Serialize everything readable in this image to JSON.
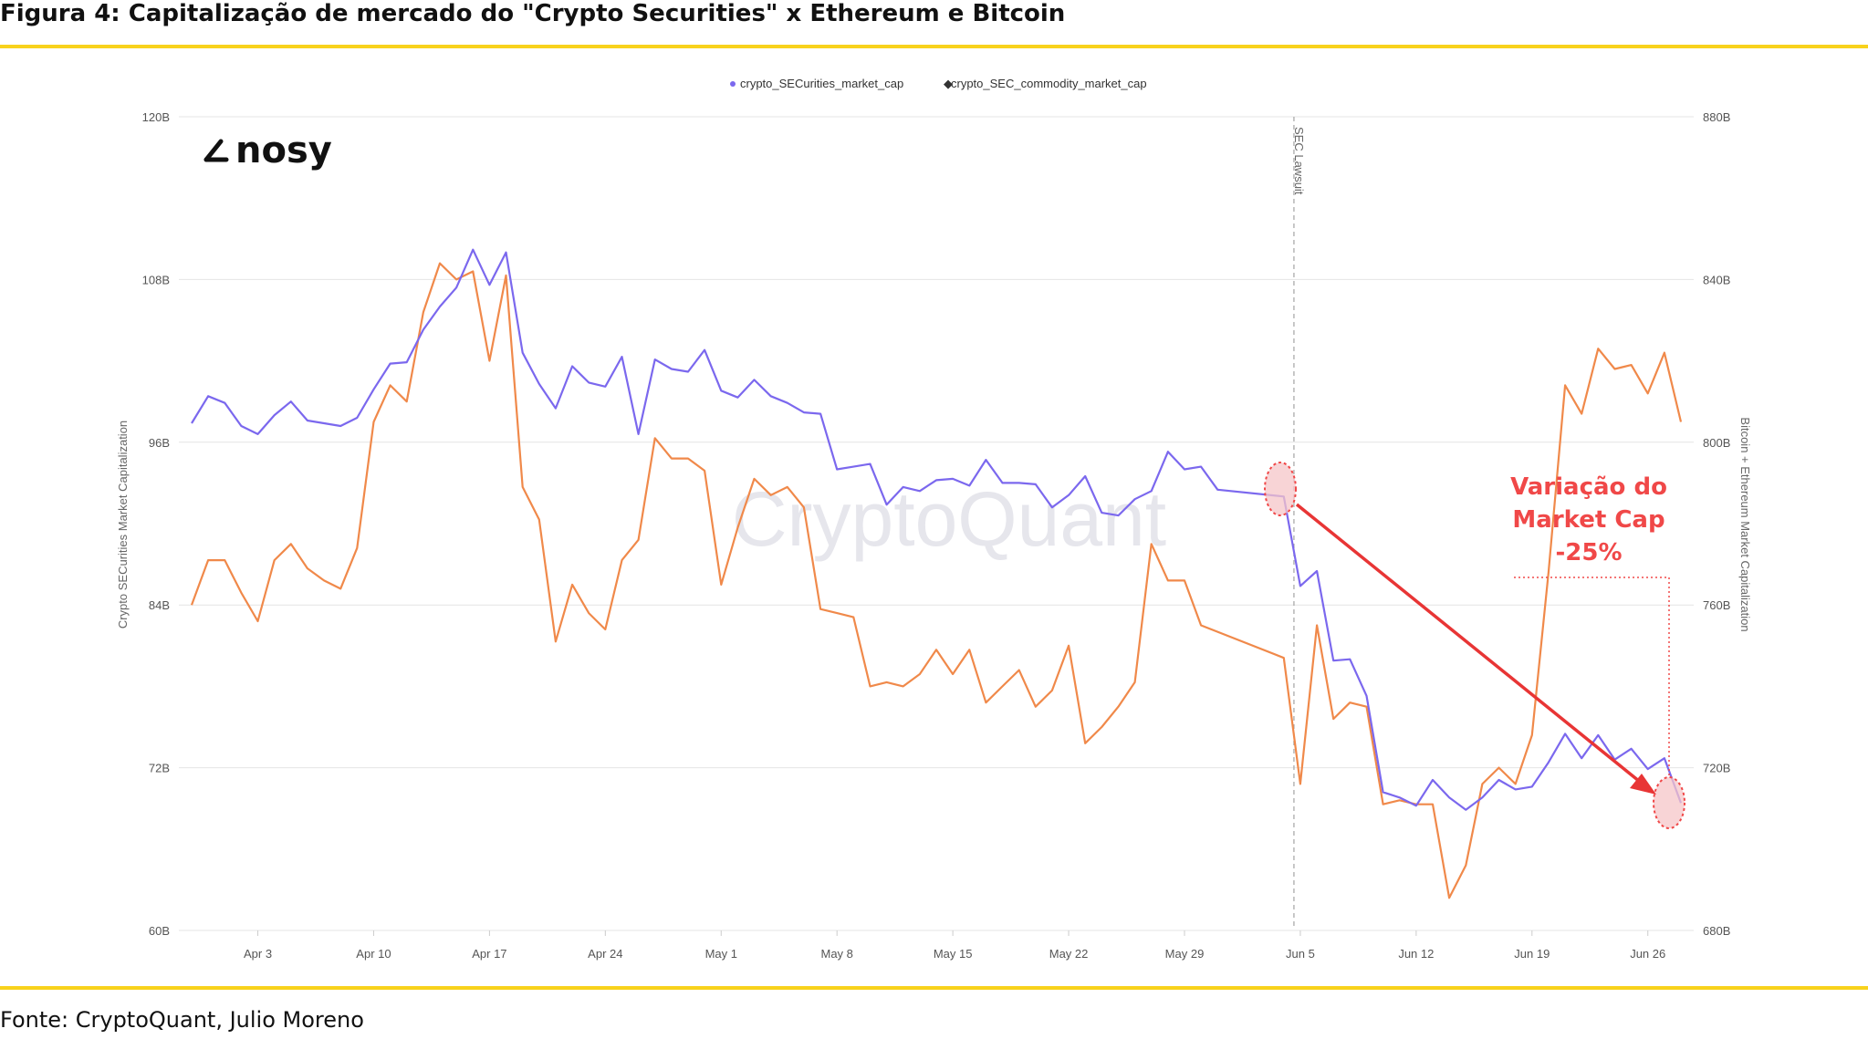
{
  "figure": {
    "title": "Figura 4: Capitalização de mercado do \"Crypto Securities\" x Ethereum e Bitcoin",
    "source": "Fonte: CryptoQuant, Julio Moreno",
    "logo_text": "nosy",
    "watermark_text": "CryptoQuant",
    "accent_color": "#f8d21c"
  },
  "annotation": {
    "line1": "Variação do",
    "line2": "Market Cap",
    "line3": "-25%",
    "color": "#f04848"
  },
  "chart_data": {
    "type": "line",
    "x_tick_labels": [
      "Apr 3",
      "Apr 10",
      "Apr 17",
      "Apr 24",
      "May 1",
      "May 8",
      "May 15",
      "May 22",
      "May 29",
      "Jun 5",
      "Jun 12",
      "Jun 19",
      "Jun 26"
    ],
    "x_start": "Mar 30",
    "x_end": "Jun 28",
    "left_axis": {
      "label": "Crypto SECurities Market Capitalization",
      "ylim": [
        60,
        120
      ],
      "ticks": [
        "60B",
        "72B",
        "84B",
        "96B",
        "108B",
        "120B"
      ]
    },
    "right_axis": {
      "label": "Bitcoin + Ethereum Market Capitalization",
      "ylim": [
        680,
        880
      ],
      "ticks": [
        "680B",
        "720B",
        "760B",
        "800B",
        "840B",
        "880B"
      ]
    },
    "event_line": {
      "label": "SEC Lawsuit",
      "date": "Jun 5"
    },
    "grid": true,
    "legend_position": "top-center",
    "series": [
      {
        "name": "crypto_SECurities_market_cap",
        "axis": "left",
        "color": "#7b68ee",
        "values": [
          [
            "Mar 30",
            97.4
          ],
          [
            "Mar 31",
            99.4
          ],
          [
            "Apr 1",
            98.9
          ],
          [
            "Apr 2",
            97.2
          ],
          [
            "Apr 3",
            96.6
          ],
          [
            "Apr 4",
            98.0
          ],
          [
            "Apr 5",
            99.0
          ],
          [
            "Apr 6",
            97.6
          ],
          [
            "Apr 7",
            97.4
          ],
          [
            "Apr 8",
            97.2
          ],
          [
            "Apr 9",
            97.8
          ],
          [
            "Apr 10",
            99.9
          ],
          [
            "Apr 11",
            101.8
          ],
          [
            "Apr 12",
            101.9
          ],
          [
            "Apr 13",
            104.3
          ],
          [
            "Apr 14",
            106.0
          ],
          [
            "Apr 15",
            107.4
          ],
          [
            "Apr 16",
            110.2
          ],
          [
            "Apr 17",
            107.6
          ],
          [
            "Apr 18",
            110.0
          ],
          [
            "Apr 19",
            102.6
          ],
          [
            "Apr 20",
            100.3
          ],
          [
            "Apr 21",
            98.5
          ],
          [
            "Apr 22",
            101.6
          ],
          [
            "Apr 23",
            100.4
          ],
          [
            "Apr 24",
            100.1
          ],
          [
            "Apr 25",
            102.3
          ],
          [
            "Apr 26",
            96.6
          ],
          [
            "Apr 27",
            102.1
          ],
          [
            "Apr 28",
            101.4
          ],
          [
            "Apr 29",
            101.2
          ],
          [
            "Apr 30",
            102.8
          ],
          [
            "May 1",
            99.8
          ],
          [
            "May 2",
            99.3
          ],
          [
            "May 3",
            100.6
          ],
          [
            "May 4",
            99.4
          ],
          [
            "May 5",
            98.9
          ],
          [
            "May 6",
            98.2
          ],
          [
            "May 7",
            98.1
          ],
          [
            "May 8",
            94.0
          ],
          [
            "May 9",
            94.2
          ],
          [
            "May 10",
            94.4
          ],
          [
            "May 11",
            91.4
          ],
          [
            "May 12",
            92.7
          ],
          [
            "May 13",
            92.4
          ],
          [
            "May 14",
            93.2
          ],
          [
            "May 15",
            93.3
          ],
          [
            "May 16",
            92.8
          ],
          [
            "May 17",
            94.7
          ],
          [
            "May 18",
            93.0
          ],
          [
            "May 19",
            93.0
          ],
          [
            "May 20",
            92.9
          ],
          [
            "May 21",
            91.2
          ],
          [
            "May 22",
            92.1
          ],
          [
            "May 23",
            93.5
          ],
          [
            "May 24",
            90.8
          ],
          [
            "May 25",
            90.6
          ],
          [
            "May 26",
            91.8
          ],
          [
            "May 27",
            92.4
          ],
          [
            "May 28",
            95.3
          ],
          [
            "May 29",
            94.0
          ],
          [
            "May 30",
            94.2
          ],
          [
            "May 31",
            92.5
          ],
          [
            "Jun 4",
            92.0
          ],
          [
            "Jun 5",
            85.4
          ],
          [
            "Jun 6",
            86.5
          ],
          [
            "Jun 7",
            79.9
          ],
          [
            "Jun 8",
            80.0
          ],
          [
            "Jun 9",
            77.3
          ],
          [
            "Jun 10",
            70.2
          ],
          [
            "Jun 11",
            69.8
          ],
          [
            "Jun 12",
            69.2
          ],
          [
            "Jun 13",
            71.1
          ],
          [
            "Jun 14",
            69.8
          ],
          [
            "Jun 15",
            68.9
          ],
          [
            "Jun 16",
            69.8
          ],
          [
            "Jun 17",
            71.1
          ],
          [
            "Jun 18",
            70.4
          ],
          [
            "Jun 19",
            70.6
          ],
          [
            "Jun 20",
            72.4
          ],
          [
            "Jun 21",
            74.5
          ],
          [
            "Jun 22",
            72.7
          ],
          [
            "Jun 23",
            74.4
          ],
          [
            "Jun 24",
            72.6
          ],
          [
            "Jun 25",
            73.4
          ],
          [
            "Jun 26",
            71.9
          ],
          [
            "Jun 27",
            72.7
          ],
          [
            "Jun 28",
            69.4
          ]
        ]
      },
      {
        "name": "crypto_SEC_commodity_market_cap",
        "axis": "right",
        "color": "#f0894a",
        "values": [
          [
            "Mar 30",
            760
          ],
          [
            "Mar 31",
            771
          ],
          [
            "Apr 1",
            771
          ],
          [
            "Apr 2",
            763
          ],
          [
            "Apr 3",
            756
          ],
          [
            "Apr 4",
            771
          ],
          [
            "Apr 5",
            775
          ],
          [
            "Apr 6",
            769
          ],
          [
            "Apr 7",
            766
          ],
          [
            "Apr 8",
            764
          ],
          [
            "Apr 9",
            774
          ],
          [
            "Apr 10",
            805
          ],
          [
            "Apr 11",
            814
          ],
          [
            "Apr 12",
            810
          ],
          [
            "Apr 13",
            832
          ],
          [
            "Apr 14",
            844
          ],
          [
            "Apr 15",
            840
          ],
          [
            "Apr 16",
            842
          ],
          [
            "Apr 17",
            820
          ],
          [
            "Apr 18",
            841
          ],
          [
            "Apr 19",
            789
          ],
          [
            "Apr 20",
            781
          ],
          [
            "Apr 21",
            751
          ],
          [
            "Apr 22",
            765
          ],
          [
            "Apr 23",
            758
          ],
          [
            "Apr 24",
            754
          ],
          [
            "Apr 25",
            771
          ],
          [
            "Apr 26",
            776
          ],
          [
            "Apr 27",
            801
          ],
          [
            "Apr 28",
            796
          ],
          [
            "Apr 29",
            796
          ],
          [
            "Apr 30",
            793
          ],
          [
            "May 1",
            765
          ],
          [
            "May 2",
            779
          ],
          [
            "May 3",
            791
          ],
          [
            "May 4",
            787
          ],
          [
            "May 5",
            789
          ],
          [
            "May 6",
            784
          ],
          [
            "May 7",
            759
          ],
          [
            "May 8",
            758
          ],
          [
            "May 9",
            757
          ],
          [
            "May 10",
            740
          ],
          [
            "May 11",
            741
          ],
          [
            "May 12",
            740
          ],
          [
            "May 13",
            743
          ],
          [
            "May 14",
            749
          ],
          [
            "May 15",
            743
          ],
          [
            "May 16",
            749
          ],
          [
            "May 17",
            736
          ],
          [
            "May 18",
            740
          ],
          [
            "May 19",
            744
          ],
          [
            "May 20",
            735
          ],
          [
            "May 21",
            739
          ],
          [
            "May 22",
            750
          ],
          [
            "May 23",
            726
          ],
          [
            "May 24",
            730
          ],
          [
            "May 25",
            735
          ],
          [
            "May 26",
            741
          ],
          [
            "May 27",
            775
          ],
          [
            "May 28",
            766
          ],
          [
            "May 29",
            766
          ],
          [
            "May 30",
            755
          ],
          [
            "Jun 4",
            747
          ],
          [
            "Jun 5",
            716
          ],
          [
            "Jun 6",
            755
          ],
          [
            "Jun 7",
            732
          ],
          [
            "Jun 8",
            736
          ],
          [
            "Jun 9",
            735
          ],
          [
            "Jun 10",
            711
          ],
          [
            "Jun 11",
            712
          ],
          [
            "Jun 12",
            711
          ],
          [
            "Jun 13",
            711
          ],
          [
            "Jun 14",
            688
          ],
          [
            "Jun 15",
            696
          ],
          [
            "Jun 16",
            716
          ],
          [
            "Jun 17",
            720
          ],
          [
            "Jun 18",
            716
          ],
          [
            "Jun 19",
            728
          ],
          [
            "Jun 20",
            768
          ],
          [
            "Jun 21",
            814
          ],
          [
            "Jun 22",
            807
          ],
          [
            "Jun 23",
            823
          ],
          [
            "Jun 24",
            818
          ],
          [
            "Jun 25",
            819
          ],
          [
            "Jun 26",
            812
          ],
          [
            "Jun 27",
            822
          ],
          [
            "Jun 28",
            805
          ]
        ]
      }
    ]
  }
}
